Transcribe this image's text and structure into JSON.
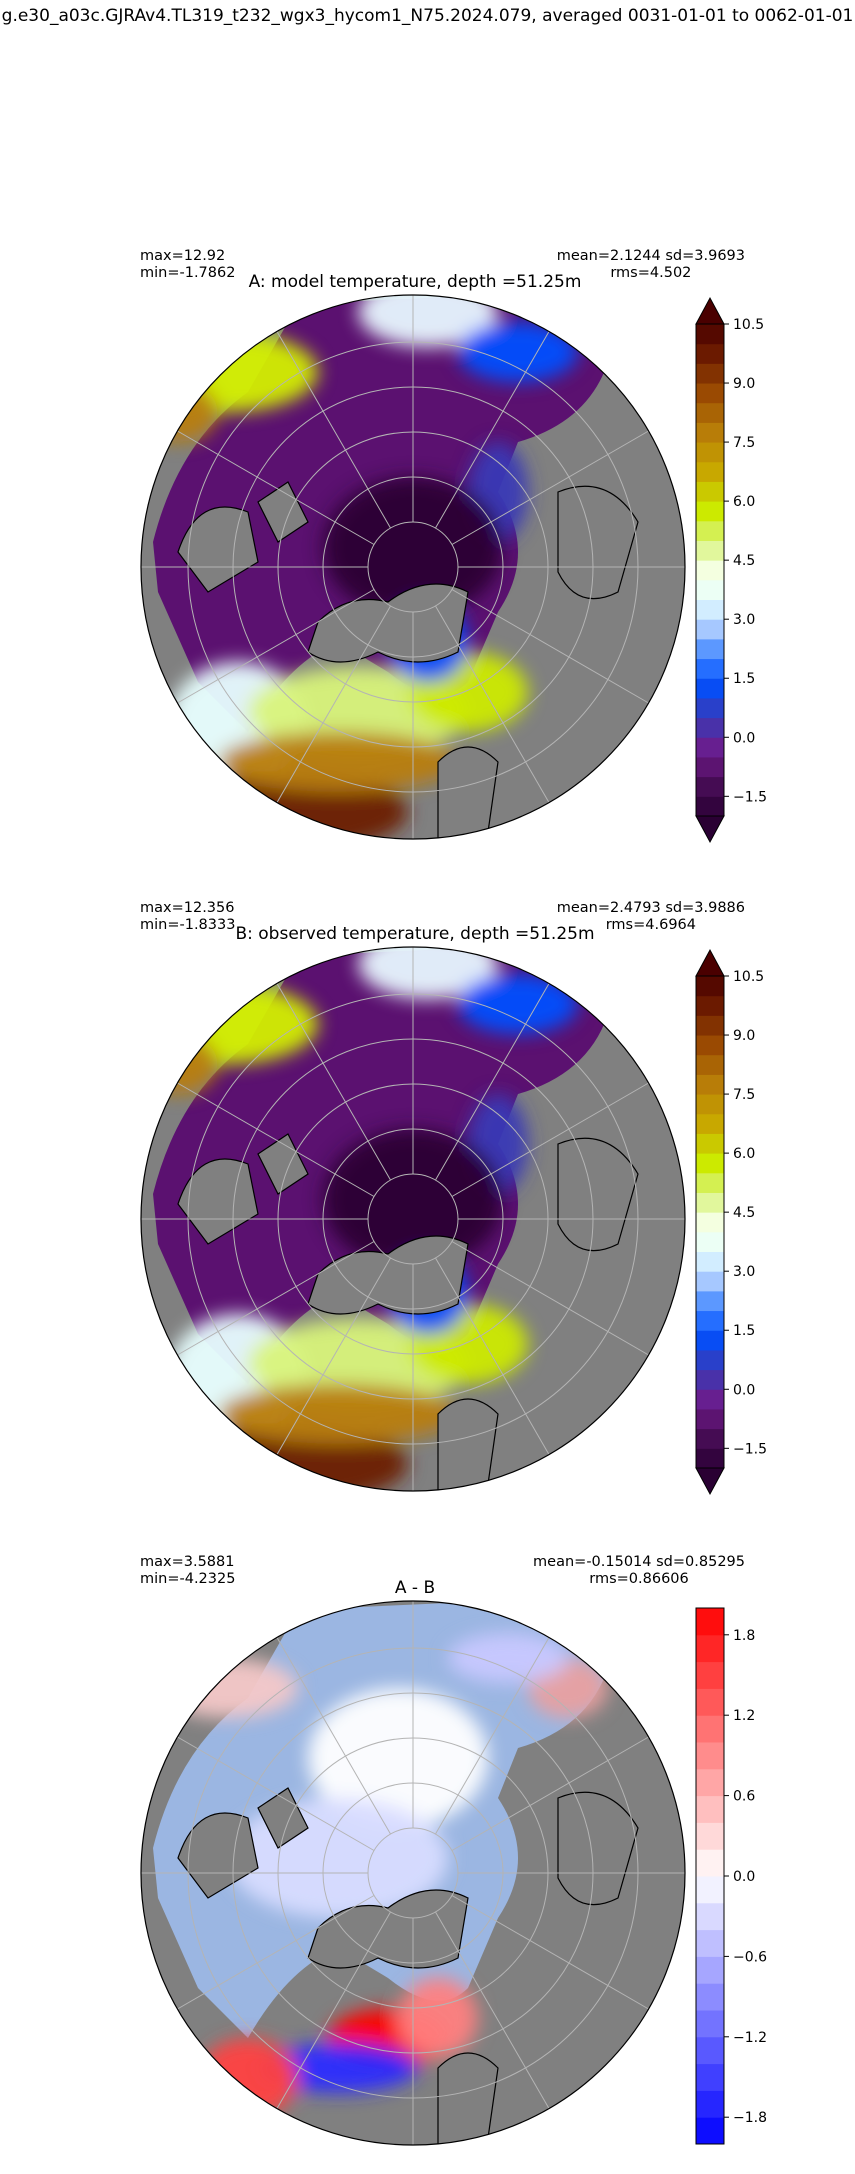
{
  "suptitle": "g.e30_a03c.GJRAv4.TL319_t232_wgx3_hycom1_N75.2024.079, averaged 0031-01-01 to 0062-01-01",
  "chart_data": [
    {
      "type": "heatmap",
      "projection": "north-polar-stereographic",
      "title": "A: model temperature, depth =51.25m",
      "stats": {
        "max": "max=12.92",
        "min": "min=-1.7862",
        "mean_sd": "mean=2.1244 sd=3.9693",
        "rms": "rms=4.502"
      },
      "colorbar": {
        "colormap": "dark purple - blue - white - yellow - brown",
        "extend": "both",
        "vmin": -2.0,
        "vmax": 10.5,
        "step": 0.5,
        "ticks": [
          -1.5,
          0.0,
          1.5,
          3.0,
          4.5,
          6.0,
          7.5,
          9.0,
          10.5
        ],
        "tick_labels": [
          "−1.5",
          "0.0",
          "1.5",
          "3.0",
          "4.5",
          "6.0",
          "7.5",
          "9.0",
          "10.5"
        ]
      },
      "land_color": "#808080"
    },
    {
      "type": "heatmap",
      "projection": "north-polar-stereographic",
      "title": "B: observed temperature, depth =51.25m",
      "stats": {
        "max": "max=12.356",
        "min": "min=-1.8333",
        "mean_sd": "mean=2.4793 sd=3.9886",
        "rms": "rms=4.6964"
      },
      "colorbar": {
        "colormap": "dark purple - blue - white - yellow - brown",
        "extend": "both",
        "vmin": -2.0,
        "vmax": 10.5,
        "step": 0.5,
        "ticks": [
          -1.5,
          0.0,
          1.5,
          3.0,
          4.5,
          6.0,
          7.5,
          9.0,
          10.5
        ],
        "tick_labels": [
          "−1.5",
          "0.0",
          "1.5",
          "3.0",
          "4.5",
          "6.0",
          "7.5",
          "9.0",
          "10.5"
        ]
      },
      "land_color": "#808080"
    },
    {
      "type": "heatmap",
      "projection": "north-polar-stereographic",
      "title": "A - B",
      "stats": {
        "max": "max=3.5881",
        "min": "min=-4.2325",
        "mean_sd": "mean=-0.15014 sd=0.85295",
        "rms": "rms=0.86606"
      },
      "colorbar": {
        "colormap": "blue - white - red",
        "extend": "neither",
        "vmin": -2.0,
        "vmax": 2.0,
        "step": 0.2,
        "ticks": [
          -1.8,
          -1.2,
          -0.6,
          0.0,
          0.6,
          1.2,
          1.8
        ],
        "tick_labels": [
          "−1.8",
          "−1.2",
          "−0.6",
          "0.0",
          "0.6",
          "1.2",
          "1.8"
        ]
      },
      "land_color": "#808080"
    }
  ]
}
